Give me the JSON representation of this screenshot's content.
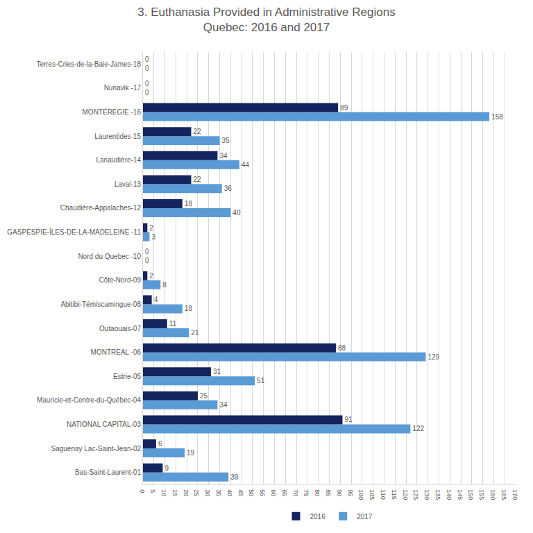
{
  "chart_data": {
    "type": "bar",
    "orientation": "horizontal",
    "title": "3. Euthanasia Provided in Administrative Regions",
    "subtitle": "Quebec: 2016 and 2017",
    "categories": [
      "Bas-Saint-Laurent-01",
      "Saguenay Lac-Saint-Jean-02",
      "NATIONAL CAPITAL-03",
      "Mauricie-et-Centre-du-Québec-04",
      "Estrie-05",
      "MONTREAL -06",
      "Outaouais-07",
      "Abitibi-Témiscamingue-08",
      "Côte-Nord-09",
      "Nord du Quebec -10",
      "GASPÉSPIE-ÎLES-DE-LA-MADELEINE -11",
      "Chaudière-Appalaches-12",
      "Laval-13",
      "Lanaudière-14",
      "Laurentides-15",
      "MONTÉRÉGIE -16",
      "Nunavik -17",
      "Terres-Cries-de-la-Baie-James-18"
    ],
    "series": [
      {
        "name": "2016",
        "color": "#14245e",
        "values": [
          9,
          6,
          91,
          25,
          31,
          88,
          11,
          4,
          2,
          0,
          2,
          18,
          22,
          34,
          22,
          89,
          0,
          0
        ]
      },
      {
        "name": "2017",
        "color": "#5b9bd5",
        "values": [
          39,
          19,
          122,
          34,
          51,
          129,
          21,
          18,
          8,
          0,
          3,
          40,
          36,
          44,
          35,
          158,
          0,
          0
        ]
      }
    ],
    "xlim": [
      0,
      170
    ],
    "xticks": [
      0,
      5,
      10,
      15,
      20,
      25,
      30,
      35,
      40,
      45,
      50,
      55,
      60,
      65,
      70,
      75,
      80,
      85,
      90,
      95,
      100,
      105,
      110,
      115,
      120,
      125,
      130,
      135,
      140,
      145,
      150,
      155,
      160,
      165,
      170
    ],
    "grid": true,
    "legend": "bottom",
    "data_labels": true
  }
}
